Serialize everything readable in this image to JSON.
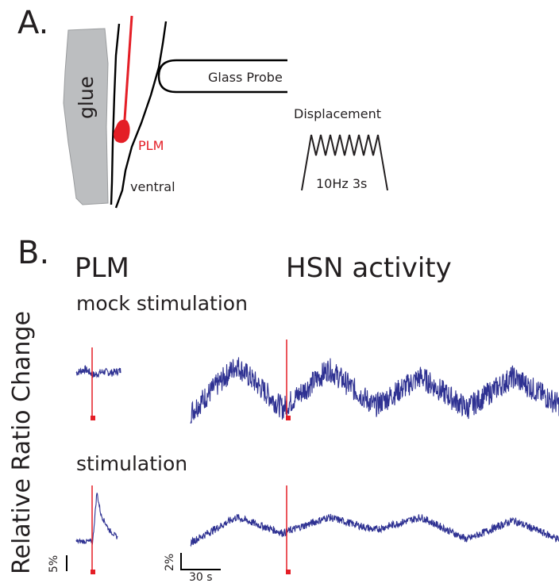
{
  "panel_a": {
    "letter": "A.",
    "glue_label": "glue",
    "neuron_label": "PLM",
    "ventral_label": "ventral",
    "probe_label": "Glass Probe",
    "displacement_label": "Displacement",
    "stimulus_label": "10Hz 3s"
  },
  "panel_b": {
    "letter": "B.",
    "col_plm": "PLM",
    "col_hsn": "HSN activity",
    "row_mock": "mock stimulation",
    "row_stim": "stimulation",
    "ylabel": "Relative Ratio Change",
    "scale_plm": "5%",
    "scale_hsn_y": "2%",
    "scale_hsn_x": "30 s"
  },
  "colors": {
    "trace": "#2e3192",
    "stimulus": "#e41e26",
    "glue": "#bcbec0",
    "outline": "#000000"
  },
  "chart_data": [
    {
      "type": "line",
      "name": "PLM mock stimulation",
      "ylim": [
        -2,
        2
      ],
      "x": [
        0,
        10,
        20,
        30,
        40,
        50
      ],
      "y": [
        0,
        0.3,
        -0.2,
        0.1,
        0.0,
        0.2
      ]
    },
    {
      "type": "line",
      "name": "HSN mock stimulation",
      "ylim": [
        -2,
        10
      ],
      "x": [
        0,
        30,
        60,
        90,
        120,
        150,
        180,
        210,
        240
      ],
      "y": [
        0,
        6,
        0.5,
        5.5,
        0.8,
        4.5,
        0.5,
        4.5,
        1.0
      ]
    },
    {
      "type": "line",
      "name": "PLM stimulation",
      "ylim": [
        -2,
        14
      ],
      "x": [
        0,
        10,
        20,
        25,
        30,
        40,
        50
      ],
      "y": [
        0,
        0,
        0,
        13,
        7,
        3,
        1
      ]
    },
    {
      "type": "line",
      "name": "HSN stimulation",
      "ylim": [
        -2,
        8
      ],
      "x": [
        0,
        30,
        60,
        90,
        120,
        150,
        180,
        210,
        240
      ],
      "y": [
        0,
        4,
        1.5,
        4,
        2,
        4,
        0.5,
        3.5,
        0.5
      ]
    }
  ]
}
